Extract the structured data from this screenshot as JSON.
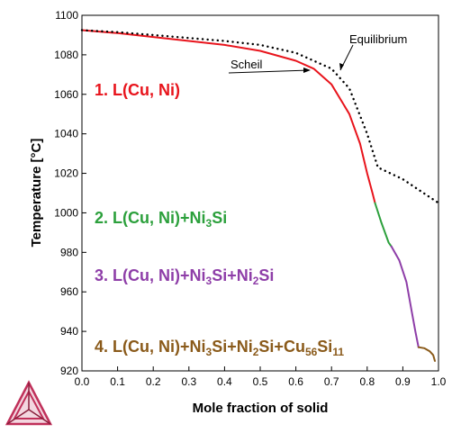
{
  "chart_data": {
    "type": "line",
    "xlabel": "Mole fraction of solid",
    "ylabel": "Temperature [°C]",
    "xlim": [
      0.0,
      1.0
    ],
    "ylim": [
      920,
      1100
    ],
    "x_ticks": [
      "0.0",
      "0.1",
      "0.2",
      "0.3",
      "0.4",
      "0.5",
      "0.6",
      "0.7",
      "0.8",
      "0.9",
      "1.0"
    ],
    "y_ticks": [
      "920",
      "940",
      "960",
      "980",
      "1000",
      "1020",
      "1040",
      "1060",
      "1080",
      "1100"
    ],
    "x_tick_values": [
      0.0,
      0.1,
      0.2,
      0.3,
      0.4,
      0.5,
      0.6,
      0.7,
      0.8,
      0.9,
      1.0
    ],
    "y_tick_values": [
      920,
      940,
      960,
      980,
      1000,
      1020,
      1040,
      1060,
      1080,
      1100
    ],
    "grid": false,
    "series": [
      {
        "name": "Scheil",
        "style": "solid",
        "segments": [
          {
            "color": "#e8141c",
            "points": [
              [
                0.0,
                1092.5
              ],
              [
                0.1,
                1091
              ],
              [
                0.2,
                1089
              ],
              [
                0.3,
                1087
              ],
              [
                0.4,
                1085
              ],
              [
                0.5,
                1082
              ],
              [
                0.6,
                1077
              ],
              [
                0.65,
                1073
              ],
              [
                0.7,
                1065
              ],
              [
                0.75,
                1050
              ],
              [
                0.78,
                1035
              ],
              [
                0.8,
                1020
              ],
              [
                0.815,
                1010
              ],
              [
                0.822,
                1005
              ]
            ]
          },
          {
            "color": "#2ca03c",
            "points": [
              [
                0.822,
                1005
              ],
              [
                0.84,
                995
              ],
              [
                0.86,
                985
              ],
              [
                0.868,
                983
              ]
            ]
          },
          {
            "color": "#8e3ea8",
            "points": [
              [
                0.868,
                983
              ],
              [
                0.89,
                976
              ],
              [
                0.91,
                965
              ],
              [
                0.925,
                950
              ],
              [
                0.935,
                940
              ],
              [
                0.944,
                932
              ]
            ]
          },
          {
            "color": "#8a5a1a",
            "points": [
              [
                0.944,
                932
              ],
              [
                0.96,
                931.5
              ],
              [
                0.975,
                930
              ],
              [
                0.985,
                928
              ],
              [
                0.99,
                925
              ]
            ]
          }
        ]
      },
      {
        "name": "Equilibrium",
        "style": "dotted",
        "segments": [
          {
            "color": "#000000",
            "points": [
              [
                0.0,
                1092.5
              ],
              [
                0.1,
                1091.5
              ],
              [
                0.2,
                1090
              ],
              [
                0.3,
                1088.5
              ],
              [
                0.4,
                1087
              ],
              [
                0.5,
                1085
              ],
              [
                0.6,
                1081
              ],
              [
                0.7,
                1073
              ],
              [
                0.75,
                1063
              ],
              [
                0.8,
                1040
              ],
              [
                0.83,
                1023
              ],
              [
                0.9,
                1017
              ],
              [
                0.95,
                1011
              ],
              [
                1.0,
                1005
              ]
            ]
          }
        ]
      }
    ],
    "annotations": [
      {
        "text": "Equilibrium",
        "points_to": [
          0.73,
          1069
        ]
      },
      {
        "text": "Scheil",
        "points_to": [
          0.64,
          1072
        ]
      }
    ],
    "regions": [
      {
        "color": "#e8141c",
        "parts": [
          {
            "t": "1. L(Cu, Ni)"
          }
        ]
      },
      {
        "color": "#2ca03c",
        "parts": [
          {
            "t": "2. L(Cu, Ni)+Ni"
          },
          {
            "t": "3",
            "sub": true
          },
          {
            "t": "Si"
          }
        ]
      },
      {
        "color": "#8e3ea8",
        "parts": [
          {
            "t": "3. L(Cu, Ni)+Ni"
          },
          {
            "t": "3",
            "sub": true
          },
          {
            "t": "Si+Ni"
          },
          {
            "t": "2",
            "sub": true
          },
          {
            "t": "Si"
          }
        ]
      },
      {
        "color": "#8a5a1a",
        "parts": [
          {
            "t": "4. L(Cu, Ni)+Ni"
          },
          {
            "t": "3",
            "sub": true
          },
          {
            "t": "Si+Ni"
          },
          {
            "t": "2",
            "sub": true
          },
          {
            "t": "Si+Cu"
          },
          {
            "t": "56",
            "sub": true
          },
          {
            "t": "Si"
          },
          {
            "t": "11",
            "sub": true
          }
        ]
      }
    ]
  },
  "logo": {
    "icon": "thermo-calc-triangle-logo",
    "colors": [
      "#c0305a",
      "#8a1f3c"
    ]
  }
}
